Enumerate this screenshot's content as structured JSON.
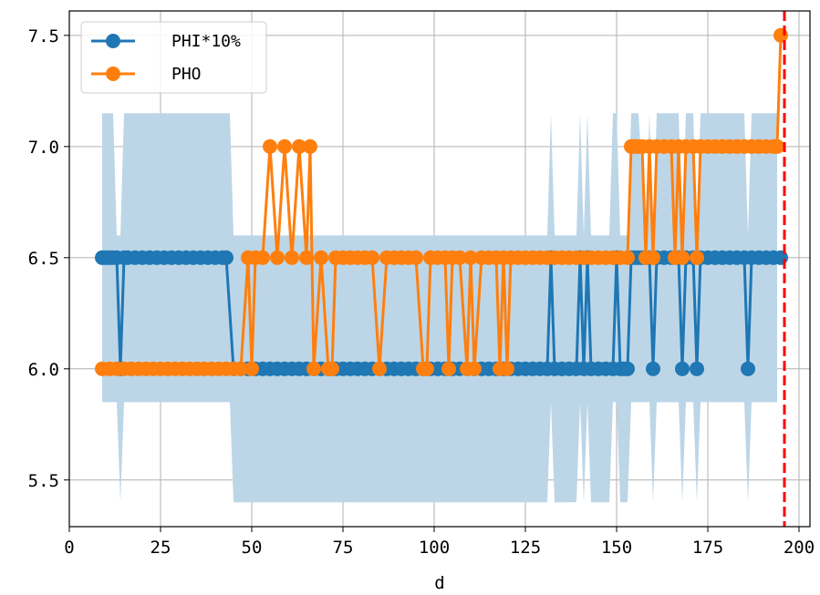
{
  "chart_data": {
    "type": "line",
    "xlabel": "d",
    "ylabel": "",
    "xlim": [
      0,
      203
    ],
    "ylim": [
      5.29,
      7.61
    ],
    "xticks": [
      0,
      25,
      50,
      75,
      100,
      125,
      150,
      175,
      200
    ],
    "yticks": [
      5.5,
      6.0,
      6.5,
      7.0,
      7.5
    ],
    "ytick_labels": [
      "5.5",
      "6.0",
      "6.5",
      "7.0",
      "7.5"
    ],
    "grid": true,
    "legend_position": "top-left",
    "colors": {
      "phi": "#1f77b4",
      "pho": "#ff7f0e",
      "band": "#bcd6e8",
      "vline": "#ff0000",
      "grid": "#b0b0b0"
    },
    "vline_x": 196,
    "band": {
      "x": [
        9,
        10,
        11,
        12,
        13,
        14,
        15,
        16,
        43,
        44,
        45,
        46,
        89,
        90,
        91,
        92,
        131,
        132,
        133,
        134,
        139,
        140,
        141,
        142,
        143,
        148,
        149,
        150,
        151,
        153,
        154,
        155,
        156,
        158,
        159,
        160,
        161,
        167,
        168,
        169,
        171,
        172,
        173,
        185,
        186,
        187,
        194
      ],
      "lo": [
        5.85,
        5.85,
        5.85,
        5.85,
        5.85,
        5.4,
        5.85,
        5.85,
        5.85,
        5.85,
        5.4,
        5.4,
        5.4,
        5.4,
        5.4,
        5.4,
        5.4,
        5.85,
        5.4,
        5.4,
        5.4,
        5.85,
        5.4,
        5.85,
        5.4,
        5.4,
        5.85,
        5.85,
        5.4,
        5.4,
        5.85,
        5.85,
        5.85,
        5.85,
        5.85,
        5.4,
        5.85,
        5.85,
        5.4,
        5.85,
        5.85,
        5.4,
        5.85,
        5.85,
        5.4,
        5.85,
        5.85
      ],
      "hi": [
        7.15,
        7.15,
        7.15,
        7.15,
        6.6,
        6.6,
        7.15,
        7.15,
        7.15,
        7.15,
        6.6,
        6.6,
        6.6,
        6.6,
        6.6,
        6.6,
        6.6,
        7.15,
        6.6,
        6.6,
        6.6,
        7.15,
        6.6,
        7.15,
        6.6,
        6.6,
        7.15,
        7.15,
        6.6,
        6.6,
        7.15,
        7.15,
        7.15,
        6.6,
        7.15,
        6.6,
        7.15,
        7.15,
        6.6,
        7.15,
        7.15,
        6.6,
        7.15,
        7.15,
        6.6,
        7.15,
        7.15
      ]
    },
    "series": [
      {
        "name": "PHI*10%",
        "x": [
          9,
          10,
          11,
          12,
          13,
          14,
          15,
          16,
          18,
          20,
          22,
          24,
          26,
          28,
          30,
          32,
          34,
          36,
          38,
          40,
          42,
          43,
          45,
          47,
          49,
          51,
          53,
          55,
          57,
          59,
          61,
          63,
          65,
          67,
          69,
          71,
          73,
          75,
          77,
          79,
          81,
          83,
          85,
          87,
          89,
          91,
          93,
          95,
          97,
          99,
          101,
          103,
          105,
          107,
          109,
          111,
          113,
          115,
          117,
          119,
          121,
          123,
          125,
          127,
          129,
          131,
          132,
          133,
          135,
          137,
          139,
          140,
          141,
          142,
          143,
          145,
          147,
          149,
          150,
          151,
          152,
          153,
          154,
          155,
          156,
          157,
          158,
          159,
          160,
          161,
          163,
          165,
          167,
          168,
          169,
          171,
          172,
          173,
          175,
          177,
          179,
          181,
          183,
          185,
          186,
          187,
          189,
          191,
          193,
          195
        ],
        "y": [
          6.5,
          6.5,
          6.5,
          6.5,
          6.5,
          6.0,
          6.5,
          6.5,
          6.5,
          6.5,
          6.5,
          6.5,
          6.5,
          6.5,
          6.5,
          6.5,
          6.5,
          6.5,
          6.5,
          6.5,
          6.5,
          6.5,
          6.0,
          6.0,
          6.0,
          6.0,
          6.0,
          6.0,
          6.0,
          6.0,
          6.0,
          6.0,
          6.0,
          6.0,
          6.0,
          6.0,
          6.0,
          6.0,
          6.0,
          6.0,
          6.0,
          6.0,
          6.0,
          6.0,
          6.0,
          6.0,
          6.0,
          6.0,
          6.0,
          6.0,
          6.0,
          6.0,
          6.0,
          6.0,
          6.0,
          6.0,
          6.0,
          6.0,
          6.0,
          6.0,
          6.0,
          6.0,
          6.0,
          6.0,
          6.0,
          6.0,
          6.5,
          6.0,
          6.0,
          6.0,
          6.0,
          6.5,
          6.0,
          6.5,
          6.0,
          6.0,
          6.0,
          6.0,
          6.5,
          6.0,
          6.0,
          6.0,
          6.5,
          6.5,
          6.5,
          6.5,
          6.5,
          6.5,
          6.0,
          6.5,
          6.5,
          6.5,
          6.5,
          6.0,
          6.5,
          6.5,
          6.0,
          6.5,
          6.5,
          6.5,
          6.5,
          6.5,
          6.5,
          6.5,
          6.0,
          6.5,
          6.5,
          6.5,
          6.5,
          6.5
        ]
      },
      {
        "name": "PHO",
        "x": [
          9,
          11,
          13,
          15,
          17,
          19,
          21,
          23,
          25,
          27,
          29,
          31,
          33,
          35,
          37,
          39,
          41,
          43,
          45,
          47,
          49,
          50,
          51,
          53,
          55,
          57,
          59,
          61,
          63,
          65,
          66,
          67,
          69,
          71,
          72,
          73,
          75,
          77,
          79,
          81,
          83,
          85,
          87,
          89,
          91,
          93,
          95,
          97,
          98,
          99,
          101,
          103,
          104,
          105,
          107,
          109,
          110,
          111,
          113,
          115,
          117,
          118,
          119,
          120,
          121,
          123,
          125,
          127,
          129,
          131,
          133,
          135,
          137,
          139,
          141,
          143,
          145,
          147,
          149,
          151,
          153,
          154,
          155,
          156,
          157,
          158,
          159,
          160,
          161,
          163,
          165,
          166,
          167,
          168,
          169,
          171,
          172,
          173,
          175,
          177,
          179,
          181,
          183,
          185,
          187,
          189,
          191,
          193,
          194,
          195
        ],
        "y": [
          6.0,
          6.0,
          6.0,
          6.0,
          6.0,
          6.0,
          6.0,
          6.0,
          6.0,
          6.0,
          6.0,
          6.0,
          6.0,
          6.0,
          6.0,
          6.0,
          6.0,
          6.0,
          6.0,
          6.0,
          6.5,
          6.0,
          6.5,
          6.5,
          7.0,
          6.5,
          7.0,
          6.5,
          7.0,
          6.5,
          7.0,
          6.0,
          6.5,
          6.0,
          6.0,
          6.5,
          6.5,
          6.5,
          6.5,
          6.5,
          6.5,
          6.0,
          6.5,
          6.5,
          6.5,
          6.5,
          6.5,
          6.0,
          6.0,
          6.5,
          6.5,
          6.5,
          6.0,
          6.5,
          6.5,
          6.0,
          6.5,
          6.0,
          6.5,
          6.5,
          6.5,
          6.0,
          6.5,
          6.0,
          6.5,
          6.5,
          6.5,
          6.5,
          6.5,
          6.5,
          6.5,
          6.5,
          6.5,
          6.5,
          6.5,
          6.5,
          6.5,
          6.5,
          6.5,
          6.5,
          6.5,
          7.0,
          7.0,
          7.0,
          7.0,
          6.5,
          7.0,
          6.5,
          7.0,
          7.0,
          7.0,
          6.5,
          7.0,
          6.5,
          7.0,
          7.0,
          6.5,
          7.0,
          7.0,
          7.0,
          7.0,
          7.0,
          7.0,
          7.0,
          7.0,
          7.0,
          7.0,
          7.0,
          7.0,
          7.5
        ]
      }
    ]
  }
}
